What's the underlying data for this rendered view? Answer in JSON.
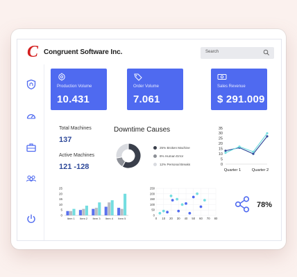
{
  "header": {
    "logo_letter": "C",
    "brand": "Congruent Software Inc.",
    "search_placeholder": "Search"
  },
  "sidebar": {
    "items": [
      {
        "icon": "shield-icon"
      },
      {
        "icon": "speedometer-icon"
      },
      {
        "icon": "briefcase-icon"
      },
      {
        "icon": "team-icon"
      },
      {
        "icon": "power-icon"
      }
    ]
  },
  "cards": [
    {
      "label": "Production Volume",
      "value": "10.431",
      "icon": "production-icon"
    },
    {
      "label": "Order Volume",
      "value": "7.061",
      "icon": "order-tag-icon"
    },
    {
      "label": "Sales Revenue",
      "value": "$ 291.009",
      "icon": "money-icon"
    }
  ],
  "stats": {
    "total_label": "Total Machines",
    "total_value": "137",
    "active_label": "Active Machines",
    "active_value": "121 -128"
  },
  "downtime": {
    "title": "Downtime Causes",
    "legend": [
      {
        "label": "25% Broken Machine",
        "color": "#3a3f4b"
      },
      {
        "label": "6% Human Error",
        "color": "#8c8f96"
      },
      {
        "label": "12% Personal Breaks",
        "color": "#d9dbe0"
      }
    ]
  },
  "share": {
    "icon": "share-icon",
    "percent": "78%"
  },
  "colors": {
    "accent": "#4f6af0",
    "accent_dark": "#2f4a9a",
    "teal": "#74dde0",
    "brand_red": "#d42020"
  },
  "chart_data": [
    {
      "type": "line",
      "title": "",
      "categories": [
        "Quarter 1",
        "Quarter 2"
      ],
      "x": [
        1,
        2,
        3,
        4
      ],
      "series": [
        {
          "values": [
            13,
            16,
            10,
            27
          ],
          "color": "#2f4a9a"
        },
        {
          "values": [
            11,
            17,
            12,
            30
          ],
          "color": "#74dde0"
        }
      ],
      "ylim": [
        0,
        35
      ],
      "yticks": [
        0,
        5,
        10,
        15,
        20,
        25,
        30,
        35
      ]
    },
    {
      "type": "donut",
      "labels": [
        "Broken Machine",
        "Human Error",
        "Personal Breaks"
      ],
      "values": [
        25,
        6,
        12
      ],
      "colors": [
        "#3a3f4b",
        "#8c8f96",
        "#d9dbe0"
      ]
    },
    {
      "type": "bar",
      "title": "",
      "categories": [
        "Item 1",
        "Item 2",
        "Item 3",
        "Item 4",
        "Item 5"
      ],
      "series": [
        {
          "values": [
            4,
            5,
            6,
            8,
            7
          ],
          "color": "#5a72ee"
        },
        {
          "values": [
            4,
            6,
            7,
            12,
            6
          ],
          "color": "#b9bcc4"
        },
        {
          "values": [
            6,
            9,
            12,
            14,
            20
          ],
          "color": "#74dde0"
        }
      ],
      "ylim": [
        0,
        25
      ],
      "yticks": [
        0,
        5,
        10,
        15,
        20,
        25
      ]
    },
    {
      "type": "scatter",
      "title": "",
      "series": [
        {
          "points": [
            [
              15,
              30
            ],
            [
              22,
              140
            ],
            [
              30,
              40
            ],
            [
              40,
              110
            ],
            [
              45,
              20
            ],
            [
              50,
              170
            ],
            [
              60,
              80
            ]
          ],
          "color": "#4f6af0"
        },
        {
          "points": [
            [
              5,
              20
            ],
            [
              10,
              40
            ],
            [
              20,
              180
            ],
            [
              28,
              150
            ],
            [
              35,
              100
            ],
            [
              55,
              200
            ],
            [
              65,
              140
            ]
          ],
          "color": "#74dde0"
        }
      ],
      "xlim": [
        0,
        80
      ],
      "ylim": [
        0,
        250
      ],
      "xticks": [
        0,
        10,
        20,
        30,
        40,
        50,
        60,
        70,
        80
      ],
      "yticks": [
        0,
        50,
        100,
        150,
        200,
        250
      ]
    }
  ]
}
